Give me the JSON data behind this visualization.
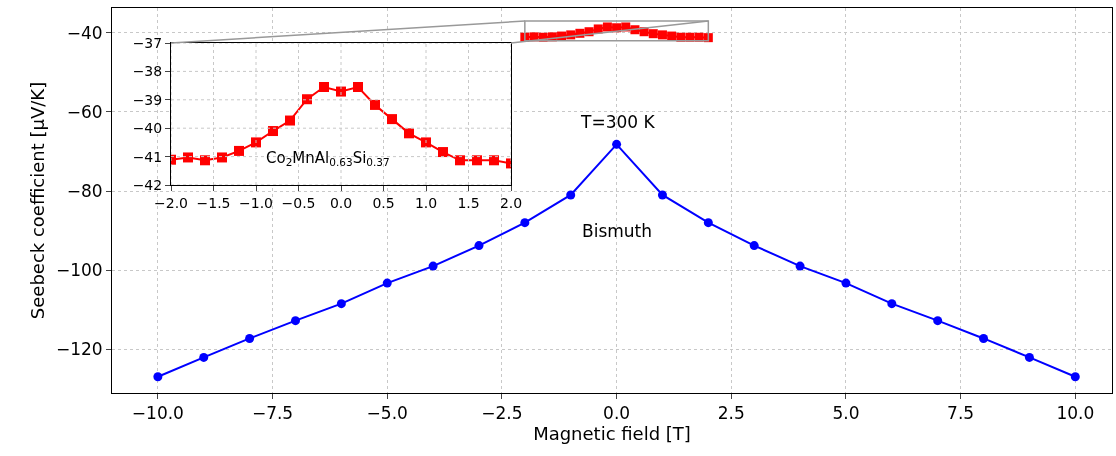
{
  "chart_data": [
    {
      "type": "line",
      "xlabel": "Magnetic field [T]",
      "ylabel": "Seebeck coefficient [μV/K]",
      "annotations": [
        "T=300 K"
      ],
      "series": [
        {
          "name": "Bismuth",
          "color": "#0000ff",
          "marker": "circle",
          "x": [
            -10,
            -9,
            -8,
            -7,
            -6,
            -5,
            -4,
            -3,
            -2,
            -1,
            0,
            1,
            2,
            3,
            4,
            5,
            6,
            7,
            8,
            9,
            10
          ],
          "values": [
            -127.0,
            -122.1,
            -117.3,
            -112.8,
            -108.5,
            -103.3,
            -99.0,
            -93.8,
            -88.0,
            -81.0,
            -68.2,
            -81.0,
            -88.0,
            -93.8,
            -99.0,
            -103.3,
            -108.5,
            -112.8,
            -117.3,
            -122.1,
            -127.0
          ]
        },
        {
          "color": "#ff0000",
          "marker": "square",
          "x": [
            -2.0,
            -1.8,
            -1.6,
            -1.4,
            -1.2,
            -1.0,
            -0.8,
            -0.6,
            -0.4,
            -0.2,
            0.0,
            0.2,
            0.4,
            0.6,
            0.8,
            1.0,
            1.2,
            1.4,
            1.6,
            1.8,
            2.0
          ],
          "values": [
            -41.1,
            -41.0,
            -41.1,
            -41.0,
            -40.8,
            -40.5,
            -40.1,
            -39.7,
            -39.0,
            -38.5,
            -38.7,
            -38.5,
            -39.2,
            -39.7,
            -40.2,
            -40.5,
            -40.8,
            -41.1,
            -41.1,
            -41.1,
            -41.2
          ]
        }
      ],
      "xlim": [
        -11,
        10.8
      ],
      "ylim": [
        -131.1,
        -33.7
      ],
      "xticks": [
        {
          "value": -10,
          "label": "−10.0"
        },
        {
          "value": -7.5,
          "label": "−7.5"
        },
        {
          "value": -5,
          "label": "−5.0"
        },
        {
          "value": -2.5,
          "label": "−2.5"
        },
        {
          "value": 0,
          "label": "0.0"
        },
        {
          "value": 2.5,
          "label": "2.5"
        },
        {
          "value": 5,
          "label": "5.0"
        },
        {
          "value": 7.5,
          "label": "7.5"
        },
        {
          "value": 10,
          "label": "10.0"
        }
      ],
      "yticks": [
        -120,
        -100,
        -80,
        -60,
        -40
      ],
      "grid": true
    },
    {
      "type": "line",
      "series": [
        {
          "name": "Co$_{2}$MnAl$_{0.63}$Si$_{0.37}$",
          "color": "#ff0000",
          "marker": "square",
          "x": [
            -2.0,
            -1.8,
            -1.6,
            -1.4,
            -1.2,
            -1.0,
            -0.8,
            -0.6,
            -0.4,
            -0.2,
            0.0,
            0.2,
            0.4,
            0.6,
            0.8,
            1.0,
            1.2,
            1.4,
            1.6,
            1.8,
            2.0
          ],
          "values": [
            -41.11,
            -41.03,
            -41.13,
            -41.03,
            -40.8,
            -40.5,
            -40.1,
            -39.73,
            -38.98,
            -38.55,
            -38.71,
            -38.55,
            -39.18,
            -39.68,
            -40.18,
            -40.5,
            -40.84,
            -41.13,
            -41.13,
            -41.13,
            -41.24
          ]
        }
      ],
      "xlim": [
        -2,
        2
      ],
      "ylim": [
        -42,
        -37
      ],
      "xticks": [
        {
          "value": -2,
          "label": "−2.0"
        },
        {
          "value": -1.5,
          "label": "−1.5"
        },
        {
          "value": -1,
          "label": "−1.0"
        },
        {
          "value": -0.5,
          "label": "−0.5"
        },
        {
          "value": 0,
          "label": "0.0"
        },
        {
          "value": 0.5,
          "label": "0.5"
        },
        {
          "value": 1,
          "label": "1.0"
        },
        {
          "value": 1.5,
          "label": "1.5"
        },
        {
          "value": 2,
          "label": "2.0"
        }
      ],
      "yticks": [
        -42,
        -41,
        -40,
        -39,
        -38,
        -37
      ],
      "grid": true
    }
  ]
}
